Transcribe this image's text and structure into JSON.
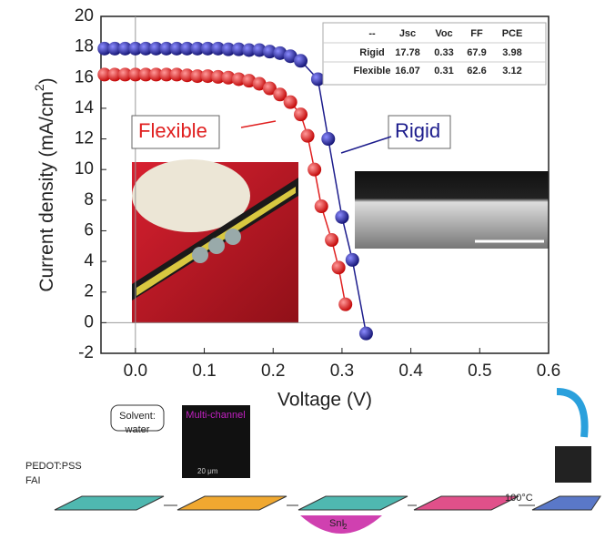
{
  "chart_data": {
    "type": "scatter-line",
    "x_label": "Voltage (V)",
    "y_label": "Current density (mA/cm",
    "y_label_sup": "2",
    "y_label_end": ")",
    "xlim": [
      -0.05,
      0.6
    ],
    "ylim": [
      -2,
      20
    ],
    "xticks": [
      {
        "value": 0,
        "label": "0.0"
      },
      0.1,
      0.2,
      0.3,
      0.4,
      0.5,
      0.6
    ],
    "yticks": [
      -2,
      0,
      2,
      4,
      6,
      8,
      10,
      12,
      14,
      16,
      18,
      20
    ],
    "zero_lines": true,
    "series": [
      {
        "name": "Rigid",
        "color": "#1c1c8c",
        "x": [
          -0.045,
          -0.03,
          -0.015,
          0,
          0.015,
          0.03,
          0.045,
          0.06,
          0.075,
          0.09,
          0.105,
          0.12,
          0.135,
          0.15,
          0.165,
          0.18,
          0.195,
          0.21,
          0.225,
          0.24,
          0.265,
          0.28,
          0.3,
          0.315,
          0.335
        ],
        "values": [
          17.9,
          17.9,
          17.9,
          17.9,
          17.9,
          17.9,
          17.9,
          17.9,
          17.9,
          17.9,
          17.9,
          17.9,
          17.85,
          17.85,
          17.8,
          17.8,
          17.7,
          17.6,
          17.4,
          17.1,
          15.9,
          12.0,
          6.9,
          4.1,
          -0.7
        ]
      },
      {
        "name": "Flexible",
        "color": "#e02020",
        "x": [
          -0.045,
          -0.03,
          -0.015,
          0,
          0.015,
          0.03,
          0.045,
          0.06,
          0.075,
          0.09,
          0.105,
          0.12,
          0.135,
          0.15,
          0.165,
          0.18,
          0.195,
          0.21,
          0.225,
          0.24,
          0.25,
          0.26,
          0.27,
          0.285,
          0.295,
          0.305
        ],
        "values": [
          16.2,
          16.2,
          16.2,
          16.2,
          16.2,
          16.2,
          16.2,
          16.2,
          16.15,
          16.1,
          16.1,
          16.05,
          16,
          15.9,
          15.8,
          15.6,
          15.3,
          14.9,
          14.4,
          13.6,
          12.2,
          10.0,
          7.6,
          5.4,
          3.6,
          1.2
        ]
      }
    ],
    "table": {
      "header": [
        "--",
        "Jsc",
        "Voc",
        "FF",
        "PCE"
      ],
      "rows": [
        [
          "Rigid",
          17.78,
          0.33,
          67.9,
          3.98
        ],
        [
          "Flexible",
          16.07,
          0.31,
          62.6,
          3.12
        ]
      ]
    },
    "process_labels": [
      "Solvent:",
      "water",
      "Multi-channel",
      "20 μm",
      "PEDOT:PSS",
      "FAI",
      "SnI",
      "2",
      "100°C"
    ]
  }
}
